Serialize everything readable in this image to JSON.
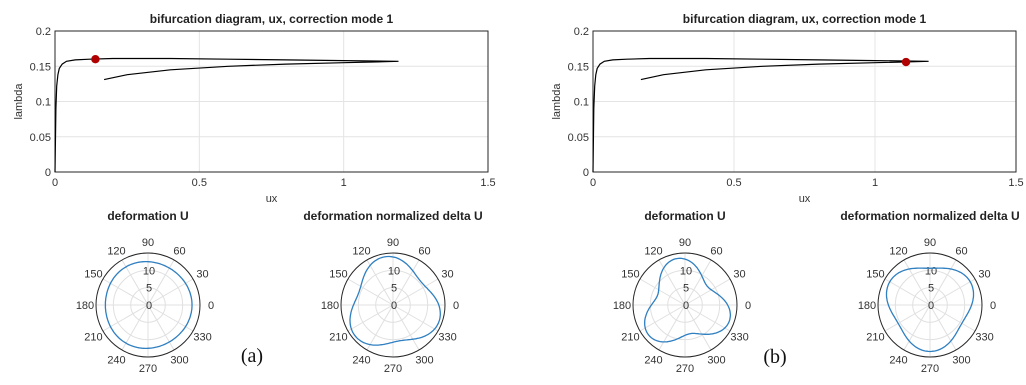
{
  "panels": [
    {
      "label": "(a)",
      "chart_data": [
        {
          "type": "line",
          "title": "bifurcation diagram, ux, correction mode 1",
          "xlabel": "ux",
          "ylabel": "lambda",
          "xlim": [
            0,
            1.5
          ],
          "ylim": [
            0,
            0.2
          ],
          "xticks": [
            "0",
            "0.5",
            "1",
            "1.5"
          ],
          "yticks": [
            "0",
            "0.05",
            "0.1",
            "0.15",
            "0.2"
          ],
          "grid": true,
          "series": [
            {
              "color": "#000000",
              "points": [
                [
                  0.0,
                  0.0
                ],
                [
                  0.003,
                  0.09
                ],
                [
                  0.006,
                  0.122
                ],
                [
                  0.01,
                  0.138
                ],
                [
                  0.015,
                  0.147
                ],
                [
                  0.025,
                  0.153
                ],
                [
                  0.04,
                  0.157
                ],
                [
                  0.07,
                  0.159
                ],
                [
                  0.12,
                  0.16
                ],
                [
                  0.2,
                  0.161
                ],
                [
                  0.4,
                  0.161
                ],
                [
                  0.6,
                  0.16
                ],
                [
                  0.8,
                  0.159
                ],
                [
                  1.0,
                  0.158
                ],
                [
                  1.19,
                  0.157
                ],
                [
                  1.1,
                  0.156
                ],
                [
                  1.0,
                  0.155
                ],
                [
                  0.8,
                  0.153
                ],
                [
                  0.6,
                  0.15
                ],
                [
                  0.4,
                  0.145
                ],
                [
                  0.25,
                  0.138
                ],
                [
                  0.17,
                  0.131
                ]
              ]
            }
          ],
          "marker": {
            "x": 0.14,
            "y": 0.16,
            "color": "#b00000"
          }
        },
        {
          "type": "polar",
          "title": "deformation U",
          "angle_ticks": [
            "0",
            "30",
            "60",
            "90",
            "120",
            "150",
            "180",
            "210",
            "240",
            "270",
            "300",
            "330"
          ],
          "radial_ticks": [
            "0",
            "5",
            "10"
          ],
          "rmax": 15,
          "grid": true,
          "series": [
            {
              "color": "#2f7fc1",
              "r_mean": 12.5,
              "r_amp": 0.2,
              "mode": 3,
              "phase_deg": 0
            }
          ]
        },
        {
          "type": "polar",
          "title": "deformation normalized delta U",
          "angle_ticks": [
            "0",
            "30",
            "60",
            "90",
            "120",
            "150",
            "180",
            "210",
            "240",
            "270",
            "300",
            "330"
          ],
          "radial_ticks": [
            "0",
            "5",
            "10"
          ],
          "rmax": 15,
          "grid": true,
          "series": [
            {
              "color": "#2f7fc1",
              "r_mean": 12.3,
              "r_amp": 1.8,
              "mode": 3,
              "phase_deg": 100
            }
          ]
        }
      ]
    },
    {
      "label": "(b)",
      "chart_data": [
        {
          "type": "line",
          "title": "bifurcation diagram, ux, correction mode 1",
          "xlabel": "ux",
          "ylabel": "lambda",
          "xlim": [
            0,
            1.5
          ],
          "ylim": [
            0,
            0.2
          ],
          "xticks": [
            "0",
            "0.5",
            "1",
            "1.5"
          ],
          "yticks": [
            "0",
            "0.05",
            "0.1",
            "0.15",
            "0.2"
          ],
          "grid": true,
          "series": [
            {
              "color": "#000000",
              "points": [
                [
                  0.0,
                  0.0
                ],
                [
                  0.003,
                  0.09
                ],
                [
                  0.006,
                  0.122
                ],
                [
                  0.01,
                  0.138
                ],
                [
                  0.015,
                  0.147
                ],
                [
                  0.025,
                  0.153
                ],
                [
                  0.04,
                  0.157
                ],
                [
                  0.07,
                  0.159
                ],
                [
                  0.12,
                  0.16
                ],
                [
                  0.2,
                  0.161
                ],
                [
                  0.4,
                  0.161
                ],
                [
                  0.6,
                  0.16
                ],
                [
                  0.8,
                  0.159
                ],
                [
                  1.0,
                  0.158
                ],
                [
                  1.19,
                  0.157
                ],
                [
                  1.1,
                  0.156
                ],
                [
                  1.0,
                  0.155
                ],
                [
                  0.8,
                  0.153
                ],
                [
                  0.6,
                  0.15
                ],
                [
                  0.4,
                  0.145
                ],
                [
                  0.25,
                  0.138
                ],
                [
                  0.17,
                  0.131
                ]
              ]
            }
          ],
          "marker": {
            "x": 1.11,
            "y": 0.156,
            "color": "#b00000"
          }
        },
        {
          "type": "polar",
          "title": "deformation U",
          "angle_ticks": [
            "0",
            "30",
            "60",
            "90",
            "120",
            "150",
            "180",
            "210",
            "240",
            "270",
            "300",
            "330"
          ],
          "radial_ticks": [
            "0",
            "5",
            "10"
          ],
          "rmax": 15,
          "grid": true,
          "series": [
            {
              "color": "#2f7fc1",
              "r_mean": 11.0,
              "r_amp": 2.6,
              "mode": 3,
              "phase_deg": 100
            }
          ]
        },
        {
          "type": "polar",
          "title": "deformation normalized delta U",
          "angle_ticks": [
            "0",
            "30",
            "60",
            "90",
            "120",
            "150",
            "180",
            "210",
            "240",
            "270",
            "300",
            "330"
          ],
          "radial_ticks": [
            "0",
            "5",
            "10"
          ],
          "rmax": 15,
          "grid": true,
          "series": [
            {
              "color": "#2f7fc1",
              "r_mean": 12.0,
              "r_amp": 1.4,
              "mode": 3,
              "phase_deg": 30
            }
          ]
        }
      ]
    }
  ]
}
